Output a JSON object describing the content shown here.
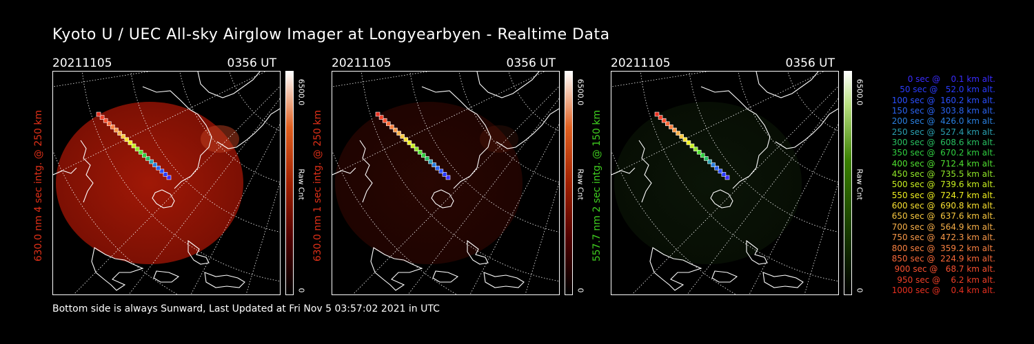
{
  "title": "Kyoto U / UEC All-sky Airglow Imager at Longyearbyen - Realtime Data",
  "footer": "Bottom side is always Sunward, Last Updated at Fri Nov  5 03:57:02 2021 in UTC",
  "panels": [
    {
      "date": "20211105",
      "time": "0356 UT",
      "ylabel": "630.0 nm 4 sec intg. @ 250 km",
      "ylabel_color": "#e03018",
      "cbar_max": "6500.0",
      "cbar_unit": "Raw Cnt",
      "cbar_min": "0",
      "colormap": "red",
      "glow": 1.0
    },
    {
      "date": "20211105",
      "time": "0356 UT",
      "ylabel": "630.0 nm 1 sec intg. @ 250 km",
      "ylabel_color": "#e03018",
      "cbar_max": "6500.0",
      "cbar_unit": "Raw Cnt",
      "cbar_min": "0",
      "colormap": "red",
      "glow": 0.25
    },
    {
      "date": "20211105",
      "time": "0356 UT",
      "ylabel": "557.7 nm 2 sec intg. @ 150 km",
      "ylabel_color": "#40d020",
      "cbar_max": "6500.0",
      "cbar_unit": "Raw Cnt",
      "cbar_min": "0",
      "colormap": "green",
      "glow": 0.35
    }
  ],
  "legend": [
    {
      "text": "0 sec @    0.1 km alt.",
      "color": "#3a2cff"
    },
    {
      "text": "50 sec @   52.0 km alt.",
      "color": "#2a3cff"
    },
    {
      "text": "100 sec @  160.2 km alt.",
      "color": "#2a50ff"
    },
    {
      "text": "150 sec @  303.8 km alt.",
      "color": "#2a64f0"
    },
    {
      "text": "200 sec @  426.0 km alt.",
      "color": "#2a80e0"
    },
    {
      "text": "250 sec @  527.4 km alt.",
      "color": "#2aa0b0"
    },
    {
      "text": "300 sec @  608.6 km alt.",
      "color": "#28c060"
    },
    {
      "text": "350 sec @  670.2 km alt.",
      "color": "#30d040"
    },
    {
      "text": "400 sec @  712.4 km alt.",
      "color": "#50e030"
    },
    {
      "text": "450 sec @  735.5 km alt.",
      "color": "#90e828"
    },
    {
      "text": "500 sec @  739.6 km alt.",
      "color": "#c8f020"
    },
    {
      "text": "550 sec @  724.7 km alt.",
      "color": "#f0f020"
    },
    {
      "text": "600 sec @  690.8 km alt.",
      "color": "#f8e030"
    },
    {
      "text": "650 sec @  637.6 km alt.",
      "color": "#f8c840"
    },
    {
      "text": "700 sec @  564.9 km alt.",
      "color": "#f8b048"
    },
    {
      "text": "750 sec @  472.3 km alt.",
      "color": "#f89848"
    },
    {
      "text": "800 sec @  359.2 km alt.",
      "color": "#f88040"
    },
    {
      "text": "850 sec @  224.9 km alt.",
      "color": "#f86838"
    },
    {
      "text": "900 sec @   68.7 km alt.",
      "color": "#f85030"
    },
    {
      "text": "950 sec @    6.2 km alt.",
      "color": "#f04028"
    },
    {
      "text": "1000 sec @    0.4 km alt.",
      "color": "#e83020"
    }
  ]
}
